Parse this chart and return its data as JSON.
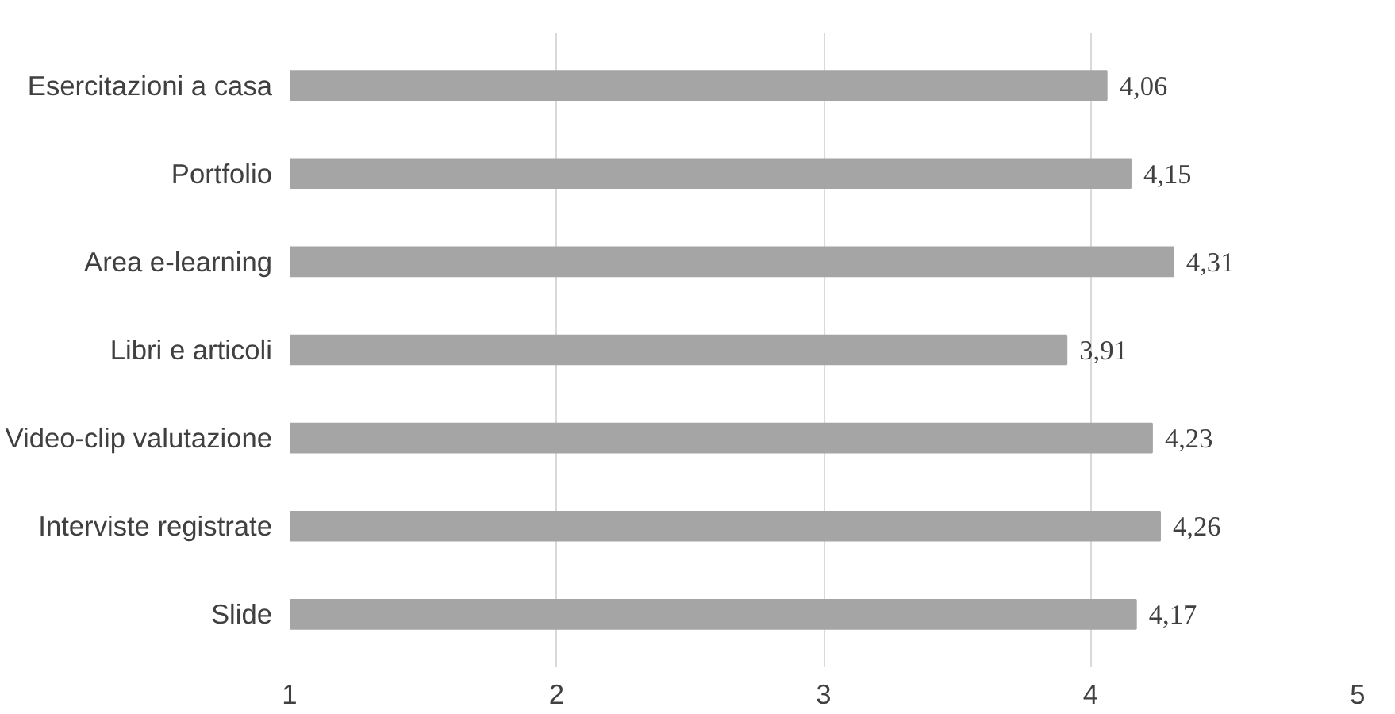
{
  "chart_data": {
    "type": "bar",
    "orientation": "horizontal",
    "categories": [
      "Esercitazioni a casa",
      "Portfolio",
      "Area e-learning",
      "Libri e articoli",
      "Video-clip valutazione",
      "Interviste registrate",
      "Slide"
    ],
    "values": [
      4.06,
      4.15,
      4.31,
      3.91,
      4.23,
      4.26,
      4.17
    ],
    "value_labels": [
      "4,06",
      "4,15",
      "4,31",
      "3,91",
      "4,23",
      "4,26",
      "4,17"
    ],
    "color": "#a5a5a5",
    "xlim": [
      1,
      5
    ],
    "xticks": [
      1,
      2,
      3,
      4,
      5
    ],
    "grid": "x"
  }
}
